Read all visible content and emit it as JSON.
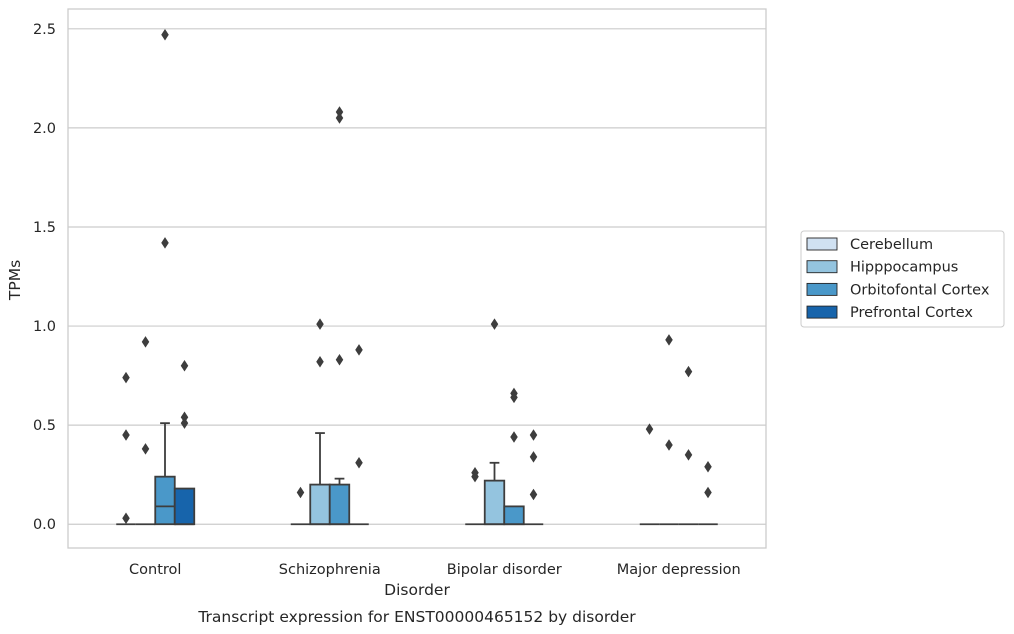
{
  "chart_data": {
    "type": "box",
    "title": "",
    "caption": "Transcript expression for ENST00000465152 by disorder",
    "xlabel": "Disorder",
    "ylabel": "TPMs",
    "ylim": [
      -0.12,
      2.6
    ],
    "yticks": [
      0.0,
      0.5,
      1.0,
      1.5,
      2.0,
      2.5
    ],
    "ytick_labels": [
      "0.0",
      "0.5",
      "1.0",
      "1.5",
      "2.0",
      "2.5"
    ],
    "categories": [
      "Control",
      "Schizophrenia",
      "Bipolar disorder",
      "Major depression"
    ],
    "grid": "horizontal",
    "legend_position": "right",
    "series": [
      {
        "name": "Cerebellum",
        "color": "#d0e1f2",
        "boxes": [
          {
            "q1": 0,
            "median": 0,
            "q3": 0,
            "whisker_low": 0,
            "whisker_high": 0,
            "outliers": [
              0.74,
              0.45,
              0.03
            ]
          },
          {
            "q1": 0,
            "median": 0,
            "q3": 0,
            "whisker_low": 0,
            "whisker_high": 0,
            "outliers": [
              0.16
            ]
          },
          {
            "q1": 0,
            "median": 0,
            "q3": 0,
            "whisker_low": 0,
            "whisker_high": 0,
            "outliers": [
              0.26,
              0.24
            ]
          },
          {
            "q1": 0,
            "median": 0,
            "q3": 0,
            "whisker_low": 0,
            "whisker_high": 0,
            "outliers": [
              0.48
            ]
          }
        ]
      },
      {
        "name": "Hipppocampus",
        "color": "#94c4df",
        "boxes": [
          {
            "q1": 0,
            "median": 0,
            "q3": 0,
            "whisker_low": 0,
            "whisker_high": 0,
            "outliers": [
              0.92,
              0.38
            ]
          },
          {
            "q1": 0,
            "median": 0,
            "q3": 0.2,
            "whisker_low": 0,
            "whisker_high": 0.46,
            "outliers": [
              1.01,
              0.82
            ]
          },
          {
            "q1": 0,
            "median": 0,
            "q3": 0.22,
            "whisker_low": 0,
            "whisker_high": 0.31,
            "outliers": [
              1.01
            ]
          },
          {
            "q1": 0,
            "median": 0,
            "q3": 0,
            "whisker_low": 0,
            "whisker_high": 0,
            "outliers": [
              0.93,
              0.4
            ]
          }
        ]
      },
      {
        "name": "Orbitofontal Cortex",
        "color": "#4a98c9",
        "boxes": [
          {
            "q1": 0,
            "median": 0.09,
            "q3": 0.24,
            "whisker_low": 0,
            "whisker_high": 0.51,
            "outliers": [
              2.47,
              1.42
            ]
          },
          {
            "q1": 0,
            "median": 0,
            "q3": 0.2,
            "whisker_low": 0,
            "whisker_high": 0.23,
            "outliers": [
              2.08,
              2.05,
              0.83
            ]
          },
          {
            "q1": 0,
            "median": 0,
            "q3": 0.09,
            "whisker_low": 0,
            "whisker_high": 0.09,
            "outliers": [
              0.66,
              0.64,
              0.44
            ]
          },
          {
            "q1": 0,
            "median": 0,
            "q3": 0,
            "whisker_low": 0,
            "whisker_high": 0,
            "outliers": [
              0.77,
              0.35
            ]
          }
        ]
      },
      {
        "name": "Prefrontal Cortex",
        "color": "#1764ab",
        "boxes": [
          {
            "q1": 0,
            "median": 0,
            "q3": 0.18,
            "whisker_low": 0,
            "whisker_high": 0.18,
            "outliers": [
              0.8,
              0.54,
              0.51
            ]
          },
          {
            "q1": 0,
            "median": 0,
            "q3": 0,
            "whisker_low": 0,
            "whisker_high": 0,
            "outliers": [
              0.88,
              0.31
            ]
          },
          {
            "q1": 0,
            "median": 0,
            "q3": 0,
            "whisker_low": 0,
            "whisker_high": 0,
            "outliers": [
              0.45,
              0.34,
              0.15
            ]
          },
          {
            "q1": 0,
            "median": 0,
            "q3": 0,
            "whisker_low": 0,
            "whisker_high": 0,
            "outliers": [
              0.29,
              0.16
            ]
          }
        ]
      }
    ]
  }
}
